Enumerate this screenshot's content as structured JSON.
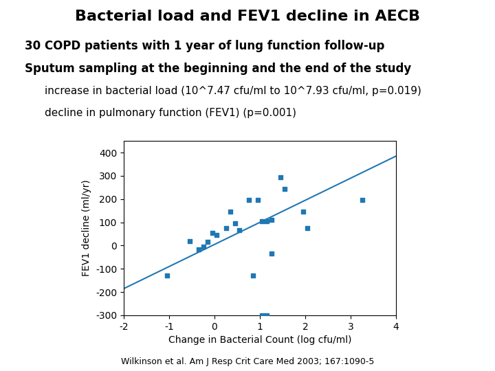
{
  "chart_data": {
    "type": "scatter",
    "title": "Bacterial load and FEV1 decline in AECB",
    "annotations": [
      "30 COPD patients with 1 year of lung function follow-up",
      "Sputum sampling at the beginning and the end of the study",
      "increase in bacterial load (10^7.47 cfu/ml to 10^7.93 cfu/ml, p=0.019)",
      "decline in pulmonary function (FEV1) (p=0.001)",
      "Wilkinson et al. Am J Resp Crit Care Med 2003; 167:1090-5"
    ],
    "xlabel": "Change in Bacterial Count (log cfu/ml)",
    "ylabel": "FEV1 decline (ml/yr)",
    "series": [
      {
        "type": "scatter",
        "marker": "square",
        "x": [
          0.85,
          1.05,
          1.15,
          1.25,
          -0.55,
          -0.35,
          -0.25,
          -0.15,
          -0.05,
          0.05,
          0.25,
          0.35,
          0.45,
          0.55,
          0.75,
          0.95,
          1.05,
          1.15,
          1.25,
          1.45,
          1.55,
          1.95,
          2.05,
          3.25,
          -1.05
        ],
        "values": [
          -130,
          -300,
          -300,
          110,
          20,
          -15,
          -5,
          15,
          55,
          45,
          75,
          145,
          95,
          65,
          195,
          195,
          105,
          105,
          -35,
          295,
          245,
          145,
          75,
          195,
          -130
        ]
      },
      {
        "type": "line",
        "line_style": "solid",
        "x": [
          -2,
          4
        ],
        "values": [
          -185,
          385
        ]
      }
    ],
    "xlim": [
      -2,
      4
    ],
    "ylim": [
      -300,
      450
    ],
    "xticks": [
      -2,
      -1,
      0,
      1,
      2,
      3,
      4
    ],
    "yticks": [
      -300,
      -200,
      -100,
      0,
      100,
      200,
      300,
      400
    ]
  }
}
